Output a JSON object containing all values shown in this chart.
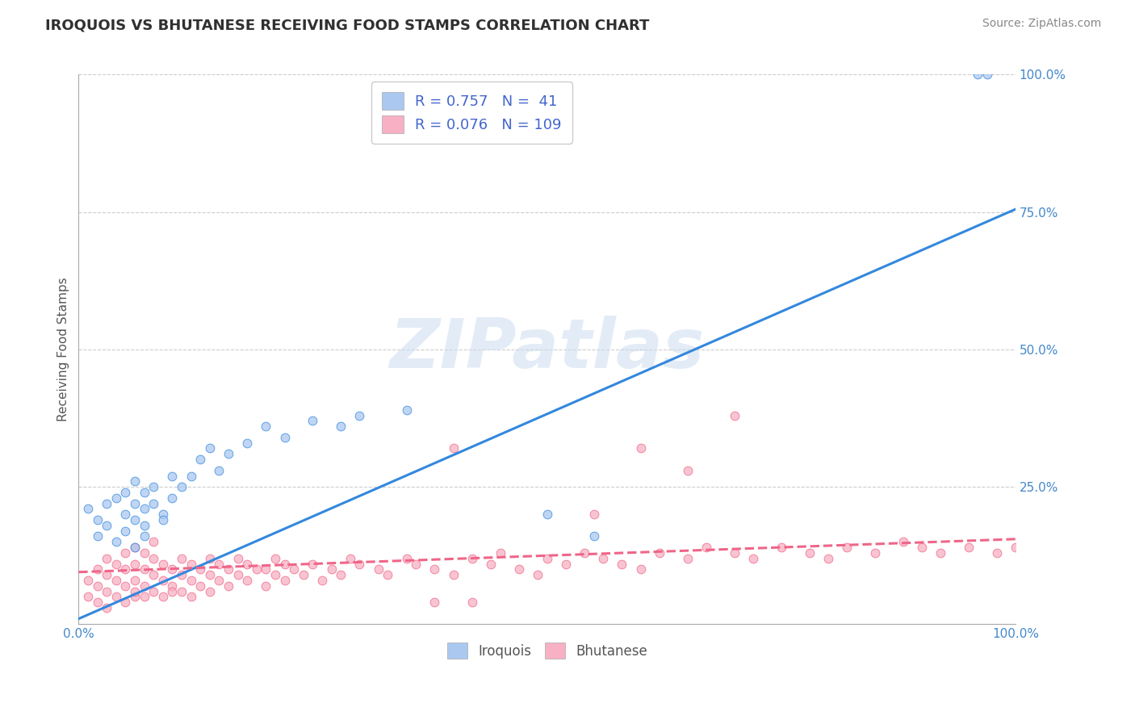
{
  "title": "IROQUOIS VS BHUTANESE RECEIVING FOOD STAMPS CORRELATION CHART",
  "source_text": "Source: ZipAtlas.com",
  "ylabel": "Receiving Food Stamps",
  "xlim": [
    0.0,
    1.0
  ],
  "ylim": [
    0.0,
    1.0
  ],
  "xtick_positions": [
    0.0,
    1.0
  ],
  "xtick_labels": [
    "0.0%",
    "100.0%"
  ],
  "ytick_positions": [
    0.0,
    0.25,
    0.5,
    0.75,
    1.0
  ],
  "ytick_labels": [
    "",
    "25.0%",
    "50.0%",
    "75.0%",
    "100.0%"
  ],
  "legend_labels": [
    "Iroquois",
    "Bhutanese"
  ],
  "legend_R": [
    "0.757",
    "0.076"
  ],
  "legend_N": [
    "41",
    "109"
  ],
  "iroquois_color": "#aac8f0",
  "bhutanese_color": "#f8b0c4",
  "iroquois_line_color": "#3388dd",
  "bhutanese_line_color": "#ee6688",
  "watermark_text": "ZIPatlas",
  "background_color": "#ffffff",
  "grid_color": "#cccccc",
  "title_color": "#303030",
  "tick_color": "#4488cc",
  "iroquois_trend_x0": 0.0,
  "iroquois_trend_y0": 0.01,
  "iroquois_trend_x1": 1.0,
  "iroquois_trend_y1": 0.755,
  "bhutanese_trend_x0": 0.0,
  "bhutanese_trend_y0": 0.095,
  "bhutanese_trend_x1": 1.0,
  "bhutanese_trend_y1": 0.155,
  "iroquois_scatter_x": [
    0.01,
    0.02,
    0.02,
    0.03,
    0.03,
    0.04,
    0.04,
    0.05,
    0.05,
    0.05,
    0.06,
    0.06,
    0.06,
    0.06,
    0.07,
    0.07,
    0.07,
    0.07,
    0.08,
    0.08,
    0.09,
    0.09,
    0.1,
    0.1,
    0.11,
    0.12,
    0.13,
    0.14,
    0.15,
    0.16,
    0.18,
    0.2,
    0.22,
    0.25,
    0.28,
    0.3,
    0.35,
    0.5,
    0.55,
    0.96,
    0.97
  ],
  "iroquois_scatter_y": [
    0.21,
    0.19,
    0.16,
    0.22,
    0.18,
    0.15,
    0.23,
    0.2,
    0.24,
    0.17,
    0.19,
    0.22,
    0.14,
    0.26,
    0.21,
    0.18,
    0.24,
    0.16,
    0.22,
    0.25,
    0.2,
    0.19,
    0.23,
    0.27,
    0.25,
    0.27,
    0.3,
    0.32,
    0.28,
    0.31,
    0.33,
    0.36,
    0.34,
    0.37,
    0.36,
    0.38,
    0.39,
    0.2,
    0.16,
    1.0,
    1.0
  ],
  "bhutanese_scatter_x": [
    0.01,
    0.01,
    0.02,
    0.02,
    0.02,
    0.03,
    0.03,
    0.03,
    0.03,
    0.04,
    0.04,
    0.04,
    0.05,
    0.05,
    0.05,
    0.05,
    0.06,
    0.06,
    0.06,
    0.06,
    0.06,
    0.07,
    0.07,
    0.07,
    0.07,
    0.08,
    0.08,
    0.08,
    0.08,
    0.09,
    0.09,
    0.09,
    0.1,
    0.1,
    0.1,
    0.11,
    0.11,
    0.11,
    0.12,
    0.12,
    0.12,
    0.13,
    0.13,
    0.14,
    0.14,
    0.14,
    0.15,
    0.15,
    0.16,
    0.16,
    0.17,
    0.17,
    0.18,
    0.18,
    0.19,
    0.2,
    0.2,
    0.21,
    0.21,
    0.22,
    0.22,
    0.23,
    0.24,
    0.25,
    0.26,
    0.27,
    0.28,
    0.29,
    0.3,
    0.32,
    0.33,
    0.35,
    0.36,
    0.38,
    0.4,
    0.42,
    0.44,
    0.45,
    0.47,
    0.49,
    0.5,
    0.52,
    0.54,
    0.56,
    0.58,
    0.6,
    0.62,
    0.65,
    0.67,
    0.7,
    0.72,
    0.75,
    0.78,
    0.8,
    0.82,
    0.85,
    0.88,
    0.9,
    0.92,
    0.95,
    0.98,
    1.0,
    0.4,
    0.55,
    0.6,
    0.65,
    0.7,
    0.38,
    0.42
  ],
  "bhutanese_scatter_y": [
    0.05,
    0.08,
    0.04,
    0.07,
    0.1,
    0.03,
    0.06,
    0.09,
    0.12,
    0.05,
    0.08,
    0.11,
    0.04,
    0.07,
    0.1,
    0.13,
    0.05,
    0.08,
    0.11,
    0.14,
    0.06,
    0.07,
    0.1,
    0.13,
    0.05,
    0.06,
    0.09,
    0.12,
    0.15,
    0.08,
    0.11,
    0.05,
    0.07,
    0.1,
    0.06,
    0.09,
    0.12,
    0.06,
    0.08,
    0.11,
    0.05,
    0.07,
    0.1,
    0.06,
    0.09,
    0.12,
    0.08,
    0.11,
    0.07,
    0.1,
    0.09,
    0.12,
    0.08,
    0.11,
    0.1,
    0.07,
    0.1,
    0.09,
    0.12,
    0.08,
    0.11,
    0.1,
    0.09,
    0.11,
    0.08,
    0.1,
    0.09,
    0.12,
    0.11,
    0.1,
    0.09,
    0.12,
    0.11,
    0.1,
    0.09,
    0.12,
    0.11,
    0.13,
    0.1,
    0.09,
    0.12,
    0.11,
    0.13,
    0.12,
    0.11,
    0.1,
    0.13,
    0.12,
    0.14,
    0.13,
    0.12,
    0.14,
    0.13,
    0.12,
    0.14,
    0.13,
    0.15,
    0.14,
    0.13,
    0.14,
    0.13,
    0.14,
    0.32,
    0.2,
    0.32,
    0.28,
    0.38,
    0.04,
    0.04
  ]
}
